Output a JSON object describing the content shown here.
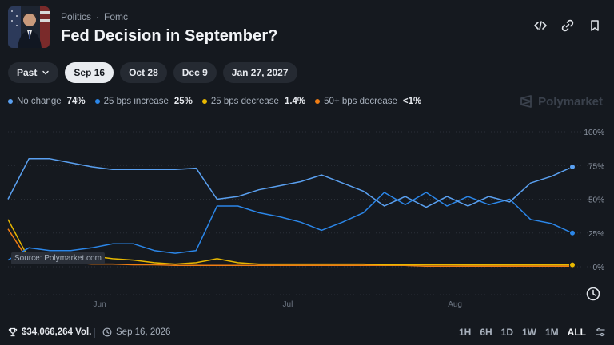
{
  "header": {
    "breadcrumb": [
      "Politics",
      "Fomc"
    ],
    "breadcrumb_sep": "·",
    "title": "Fed Decision in September?"
  },
  "date_pills": [
    {
      "label": "Past",
      "dropdown": true,
      "active": false
    },
    {
      "label": "Sep 16",
      "active": true
    },
    {
      "label": "Oct 28",
      "active": false
    },
    {
      "label": "Dec 9",
      "active": false
    },
    {
      "label": "Jan 27, 2027",
      "active": false
    }
  ],
  "legend": [
    {
      "name": "No change",
      "value": "74%",
      "color": "#5aa0f0"
    },
    {
      "name": "25 bps increase",
      "value": "25%",
      "color": "#2b86e8"
    },
    {
      "name": "25 bps decrease",
      "value": "1.4%",
      "color": "#e8b800"
    },
    {
      "name": "50+ bps decrease",
      "value": "<1%",
      "color": "#f07d14"
    }
  ],
  "brand": "Polymarket",
  "source_label": "Source: Polymarket.com",
  "footer": {
    "volume": "$34,066,264 Vol.",
    "date": "Sep 16, 2026",
    "ranges": [
      "1H",
      "6H",
      "1D",
      "1W",
      "1M",
      "ALL"
    ],
    "active_range": "ALL"
  },
  "chart_data": {
    "type": "line",
    "x": [
      "May 20",
      "May 22",
      "May 25",
      "May 28",
      "Jun 1",
      "Jun 4",
      "Jun 8",
      "Jun 12",
      "Jun 16",
      "Jun 20",
      "Jun 22",
      "Jun 25",
      "Jun 28",
      "Jul 1",
      "Jul 4",
      "Jul 8",
      "Jul 12",
      "Jul 16",
      "Jul 20",
      "Jul 24",
      "Jul 28",
      "Aug 1",
      "Aug 5",
      "Aug 9",
      "Aug 13",
      "Aug 17",
      "Aug 21",
      "Aug 25"
    ],
    "x_ticks": [
      "Jun",
      "Jul",
      "Aug"
    ],
    "x_tick_index": [
      4,
      13,
      21
    ],
    "y_ticks": [
      "100%",
      "75%",
      "50%",
      "25%",
      "0%"
    ],
    "ylim": [
      0,
      100
    ],
    "grid": "horizontal",
    "series": [
      {
        "name": "No change",
        "color": "#5aa0f0",
        "values": [
          50,
          80,
          80,
          77,
          74,
          72,
          72,
          72,
          72,
          73,
          50,
          52,
          57,
          60,
          63,
          68,
          62,
          56,
          45,
          52,
          44,
          52,
          45,
          52,
          48,
          62,
          67,
          74
        ]
      },
      {
        "name": "25 bps increase",
        "color": "#2b86e8",
        "values": [
          5,
          14,
          12,
          12,
          14,
          17,
          17,
          12,
          10,
          12,
          45,
          45,
          40,
          37,
          33,
          27,
          33,
          40,
          55,
          46,
          55,
          45,
          52,
          46,
          50,
          35,
          32,
          25
        ]
      },
      {
        "name": "25 bps decrease",
        "color": "#e8b800",
        "values": [
          35,
          6,
          5,
          6,
          8,
          6,
          5,
          3,
          2,
          3,
          6,
          3,
          2,
          2,
          2,
          2,
          2,
          2,
          1.5,
          1.5,
          1.5,
          1.5,
          1.4,
          1.4,
          1.4,
          1.4,
          1.4,
          1.4
        ]
      },
      {
        "name": "50+ bps decrease",
        "color": "#f07d14",
        "values": [
          28,
          4,
          3,
          3,
          2,
          2,
          1.5,
          1.5,
          1,
          1,
          1,
          1,
          1,
          1,
          1,
          1,
          1,
          1,
          1,
          1,
          0.5,
          0.5,
          0.5,
          0.5,
          0.5,
          0.5,
          0.5,
          0.5
        ]
      }
    ]
  }
}
